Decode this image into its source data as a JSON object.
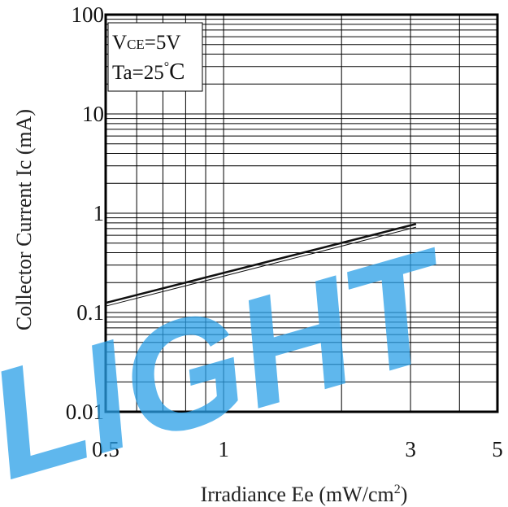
{
  "watermark": "LIGHT",
  "chart_data": {
    "type": "line",
    "title": "",
    "xlabel": "Irradiance Ee (mW/cm",
    "xlabel_sup": "2",
    "xlabel_end": ")",
    "ylabel": "Collector Current Ic (mA)",
    "xscale": "log",
    "yscale": "log",
    "xlim": [
      0.5,
      5
    ],
    "ylim": [
      0.01,
      100
    ],
    "x_ticks": [
      0.5,
      1,
      3,
      5
    ],
    "x_tick_labels": [
      "0.5",
      "1",
      "3",
      "5"
    ],
    "y_ticks": [
      0.01,
      0.1,
      1,
      10,
      100
    ],
    "y_tick_labels": [
      "0.01",
      "0.1",
      "1",
      "10",
      "100"
    ],
    "grid": true,
    "annotation": {
      "v_prefix": "V",
      "v_sub": "CE",
      "v_value": "=5V",
      "t_prefix": "Ta=25",
      "t_deg": "°",
      "t_unit": "C"
    },
    "series": [
      {
        "name": "",
        "x": [
          0.5,
          3.1
        ],
        "y": [
          0.125,
          0.78
        ]
      }
    ],
    "colors": {
      "line": "#111111",
      "grid": "#000000",
      "watermark": "#2aa0e8"
    }
  }
}
